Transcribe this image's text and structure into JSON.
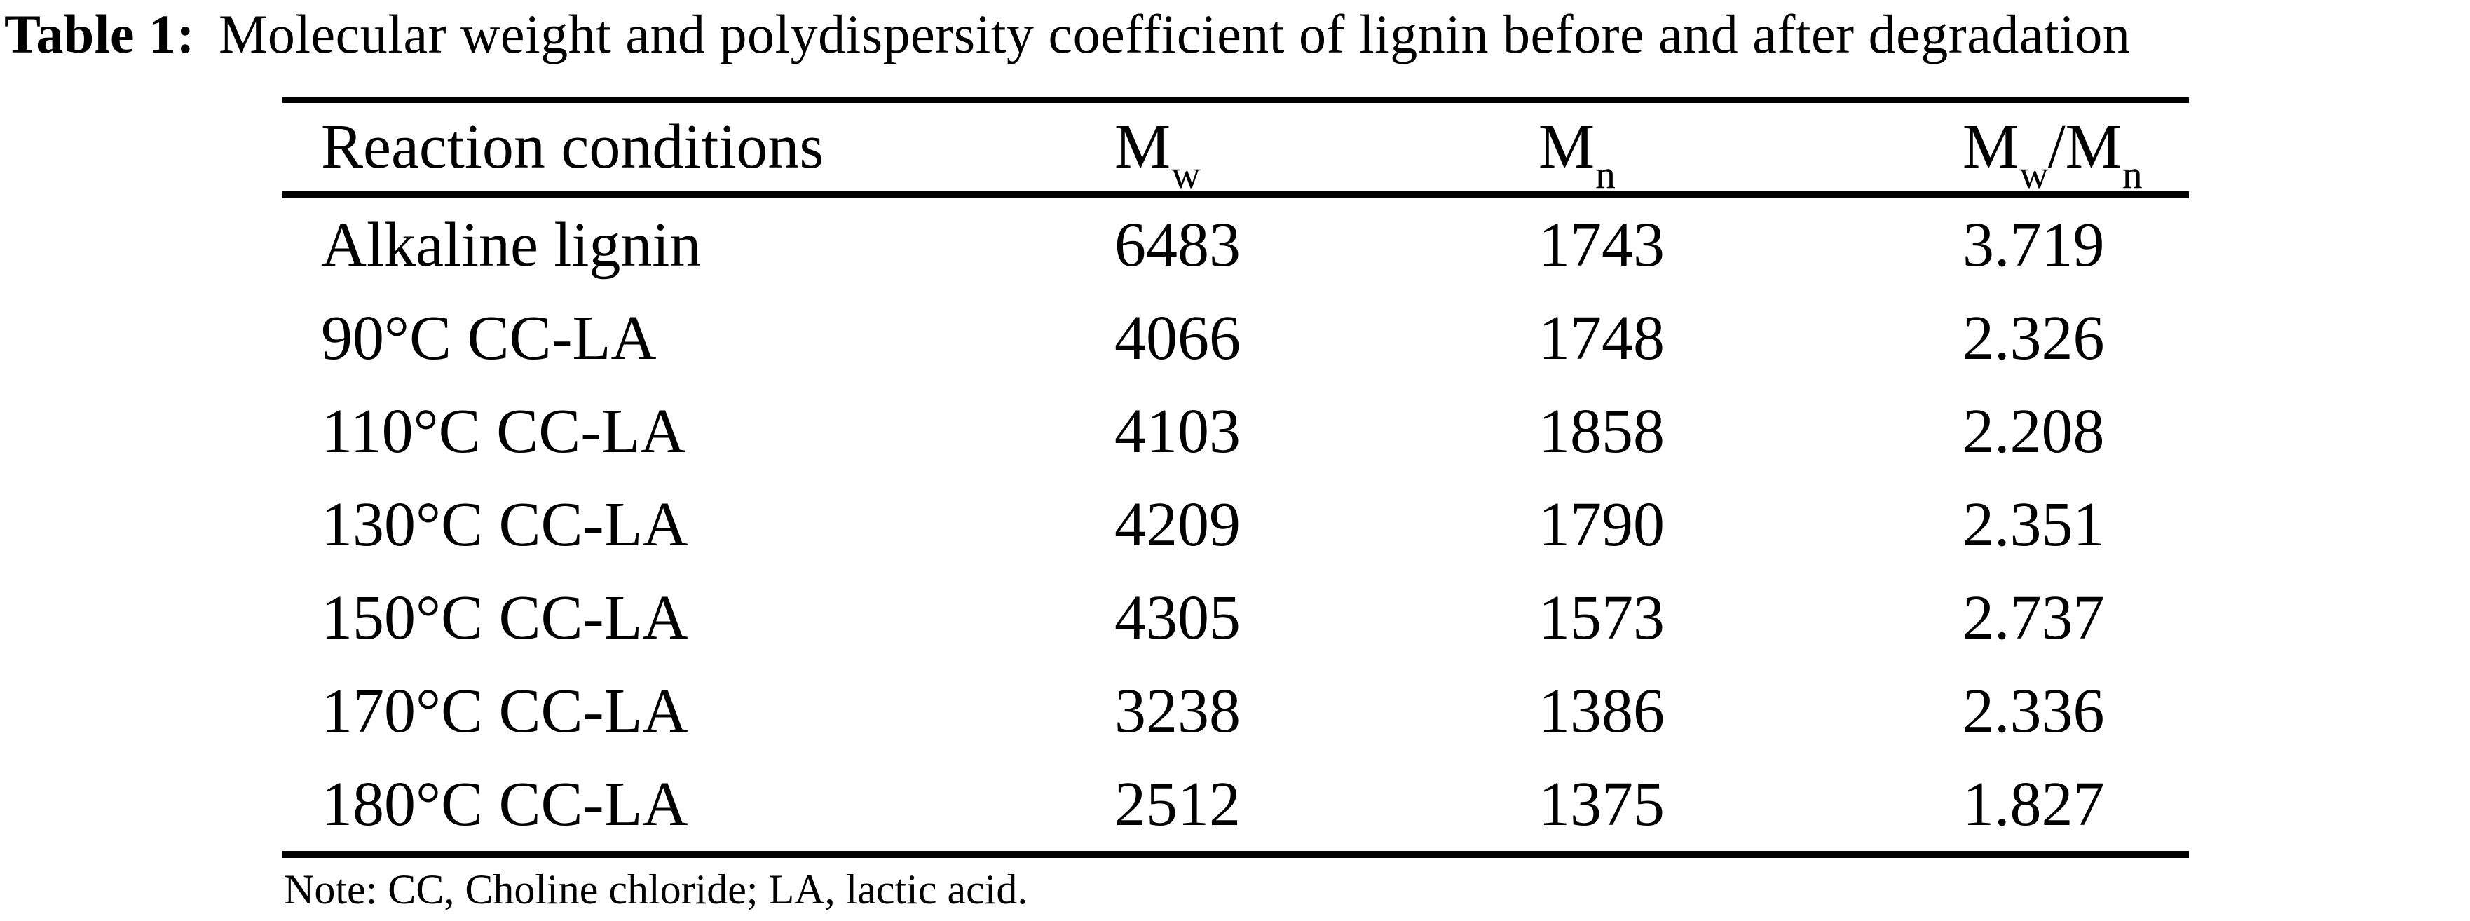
{
  "caption": {
    "label": "Table 1:",
    "text": "Molecular weight and polydispersity coefficient of lignin before and after degradation"
  },
  "table": {
    "columns": [
      {
        "label": "Reaction conditions"
      },
      {
        "base": "M",
        "sub": "w"
      },
      {
        "base": "M",
        "sub": "n"
      },
      {
        "base1": "M",
        "sub1": "w",
        "sep": "/",
        "base2": "M",
        "sub2": "n"
      }
    ],
    "rows": [
      {
        "condition": "Alkaline lignin",
        "mw": "6483",
        "mn": "1743",
        "mw_mn": "3.719"
      },
      {
        "condition": "90°C CC-LA",
        "mw": "4066",
        "mn": "1748",
        "mw_mn": "2.326"
      },
      {
        "condition": "110°C CC-LA",
        "mw": "4103",
        "mn": "1858",
        "mw_mn": "2.208"
      },
      {
        "condition": "130°C CC-LA",
        "mw": "4209",
        "mn": "1790",
        "mw_mn": "2.351"
      },
      {
        "condition": "150°C CC-LA",
        "mw": "4305",
        "mn": "1573",
        "mw_mn": "2.737"
      },
      {
        "condition": "170°C CC-LA",
        "mw": "3238",
        "mn": "1386",
        "mw_mn": "2.336"
      },
      {
        "condition": "180°C CC-LA",
        "mw": "2512",
        "mn": "1375",
        "mw_mn": "1.827"
      }
    ]
  },
  "note": {
    "text": "Note: CC, Choline chloride; LA, lactic acid."
  },
  "colors": {
    "text": "#000000",
    "background": "#ffffff",
    "rule": "#000000"
  }
}
